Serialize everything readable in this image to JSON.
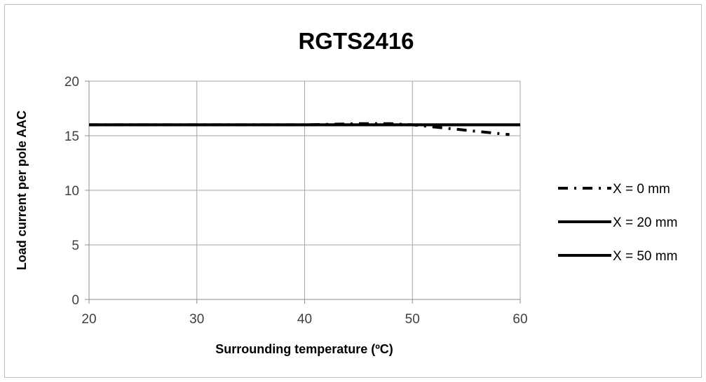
{
  "chart_data": {
    "type": "line",
    "title": "RGTS2416",
    "xlabel": "Surrounding temperature (ºC)",
    "ylabel": "Load current per pole AAC",
    "xlim": [
      20,
      60
    ],
    "ylim": [
      0,
      20
    ],
    "x_ticks": [
      20,
      30,
      40,
      50,
      60
    ],
    "y_ticks": [
      0,
      5,
      10,
      15,
      20
    ],
    "grid": true,
    "legend_position": "right",
    "series": [
      {
        "name": "X = 0 mm",
        "style": "dash-dot",
        "color": "#000000",
        "points": [
          [
            20,
            16
          ],
          [
            30,
            16
          ],
          [
            40,
            16
          ],
          [
            45,
            16.1
          ],
          [
            48,
            16.1
          ],
          [
            50,
            16.0
          ],
          [
            52,
            15.8
          ],
          [
            54,
            15.6
          ],
          [
            56,
            15.4
          ],
          [
            58,
            15.2
          ],
          [
            59,
            15.1
          ]
        ]
      },
      {
        "name": "X = 20 mm",
        "style": "solid",
        "color": "#000000",
        "points": [
          [
            20,
            16
          ],
          [
            60,
            16
          ]
        ]
      },
      {
        "name": "X = 50 mm",
        "style": "solid",
        "color": "#000000",
        "points": [
          [
            20,
            16
          ],
          [
            60,
            16
          ]
        ]
      }
    ]
  },
  "colors": {
    "frame": "#bfbfbf",
    "grid": "#a6a6a6",
    "axis": "#8c8c8c",
    "text": "#000000",
    "tick_text": "#404040"
  }
}
